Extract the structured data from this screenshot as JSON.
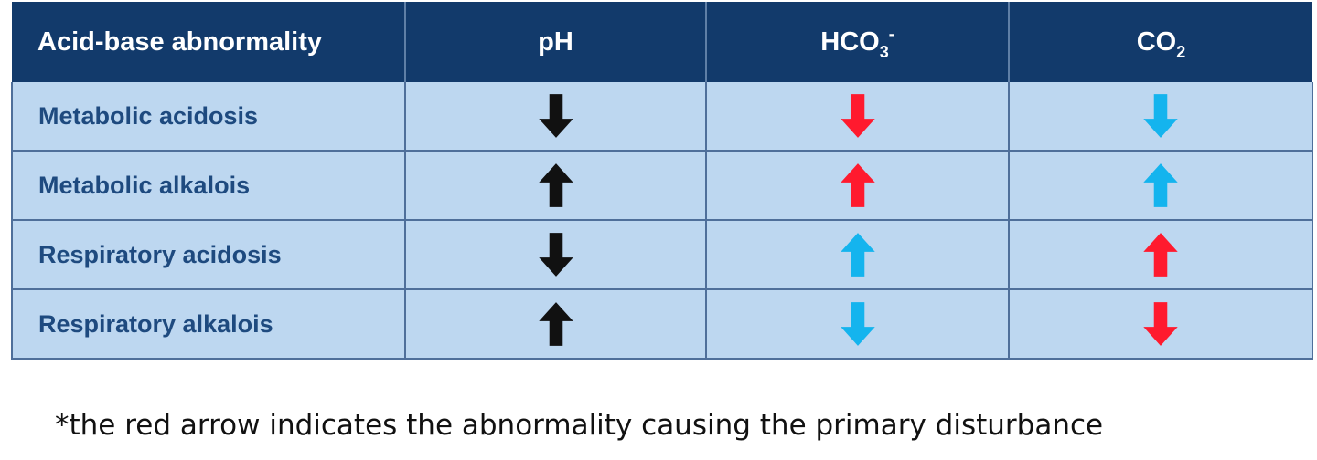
{
  "colors": {
    "header_bg": "#123a6b",
    "row_bg": "#bdd7f0",
    "row_text": "#1e4a7f",
    "black": "#111111",
    "red": "#ff1a2e",
    "blue": "#14b4ee"
  },
  "table": {
    "headers": {
      "col0": "Acid-base abnormality",
      "col1": "pH",
      "col2_main": "HCO",
      "col2_sub": "3",
      "col2_sup": "-",
      "col3_main": "CO",
      "col3_sub": "2"
    },
    "rows": [
      {
        "label": "Metabolic acidosis",
        "ph": {
          "dir": "down",
          "color": "black"
        },
        "hco3": {
          "dir": "down",
          "color": "red"
        },
        "co2": {
          "dir": "down",
          "color": "blue"
        }
      },
      {
        "label": "Metabolic alkalois",
        "ph": {
          "dir": "up",
          "color": "black"
        },
        "hco3": {
          "dir": "up",
          "color": "red"
        },
        "co2": {
          "dir": "up",
          "color": "blue"
        }
      },
      {
        "label": "Respiratory acidosis",
        "ph": {
          "dir": "down",
          "color": "black"
        },
        "hco3": {
          "dir": "up",
          "color": "blue"
        },
        "co2": {
          "dir": "up",
          "color": "red"
        }
      },
      {
        "label": "Respiratory alkalois",
        "ph": {
          "dir": "up",
          "color": "black"
        },
        "hco3": {
          "dir": "down",
          "color": "blue"
        },
        "co2": {
          "dir": "down",
          "color": "red"
        }
      }
    ]
  },
  "footnote": "*the red arrow indicates the abnormality causing the primary disturbance"
}
